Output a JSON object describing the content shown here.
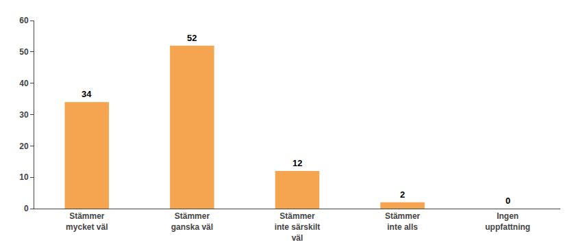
{
  "chart_data": {
    "type": "bar",
    "categories": [
      "Stämmer\nmycket väl",
      "Stämmer\nganska väl",
      "Stämmer\ninte särskilt\nväl",
      "Stämmer\ninte alls",
      "Ingen\nuppfattning"
    ],
    "values": [
      34,
      52,
      12,
      2,
      0
    ],
    "color": "#F5A550",
    "ylim": [
      0,
      60
    ],
    "yticks": [
      0,
      10,
      20,
      30,
      40,
      50,
      60
    ],
    "grid": false,
    "data_labels": true
  }
}
